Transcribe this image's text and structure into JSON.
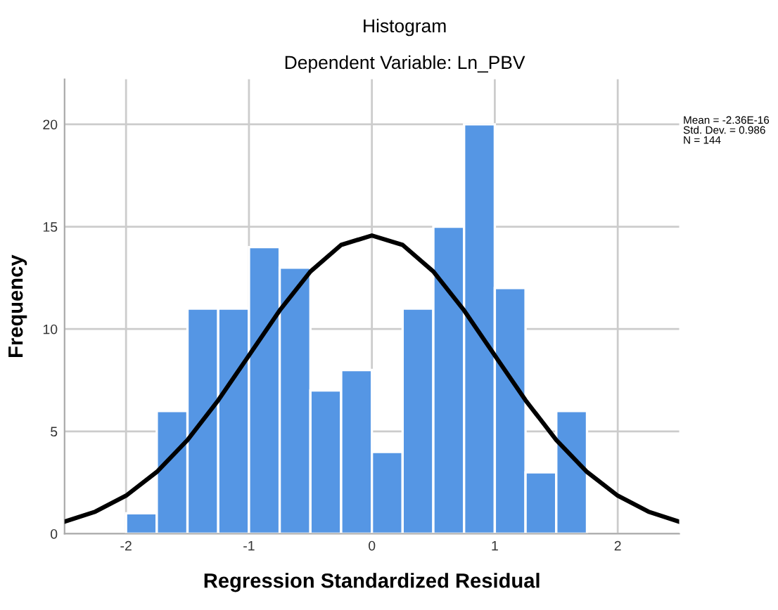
{
  "chart_data": {
    "type": "histogram",
    "title": "Histogram",
    "subtitle": "Dependent Variable: Ln_PBV",
    "xlabel": "Regression Standardized Residual",
    "ylabel": "Frequency",
    "bins": [
      -2,
      -1.75,
      -1.5,
      -1.25,
      -1,
      -0.75,
      -0.5,
      -0.25,
      0,
      0.25,
      0.5,
      0.75,
      1,
      1.25,
      1.5,
      1.75
    ],
    "values": [
      1,
      6,
      11,
      11,
      14,
      13,
      7,
      8,
      4,
      11,
      15,
      20,
      12,
      3,
      6
    ],
    "color": "#5596e4",
    "series": [
      {
        "type": "line",
        "color": "#000000",
        "x": [
          -2.5,
          -2.25,
          -2,
          -1.75,
          -1.5,
          -1.25,
          -1,
          -0.75,
          -0.5,
          -0.25,
          0,
          0.25,
          0.5,
          0.75,
          1,
          1.25,
          1.5,
          1.75,
          2,
          2.25,
          2.5
        ],
        "values": [
          0.59,
          1.08,
          1.86,
          3.02,
          4.58,
          6.52,
          8.71,
          10.91,
          12.81,
          14.11,
          14.57,
          14.11,
          12.81,
          10.91,
          8.71,
          6.52,
          4.58,
          3.02,
          1.86,
          1.08,
          0.59
        ]
      }
    ],
    "xlim": [
      -2.5,
      2.5
    ],
    "xticks": [
      -2,
      -1,
      0,
      1,
      2
    ],
    "ylim": [
      0,
      22.2
    ],
    "yticks": [
      0,
      5,
      10,
      15,
      20
    ],
    "grid": true,
    "annotations": [
      "Mean = -2.36E-16\nStd. Dev. = 0.986\nN = 144"
    ]
  }
}
